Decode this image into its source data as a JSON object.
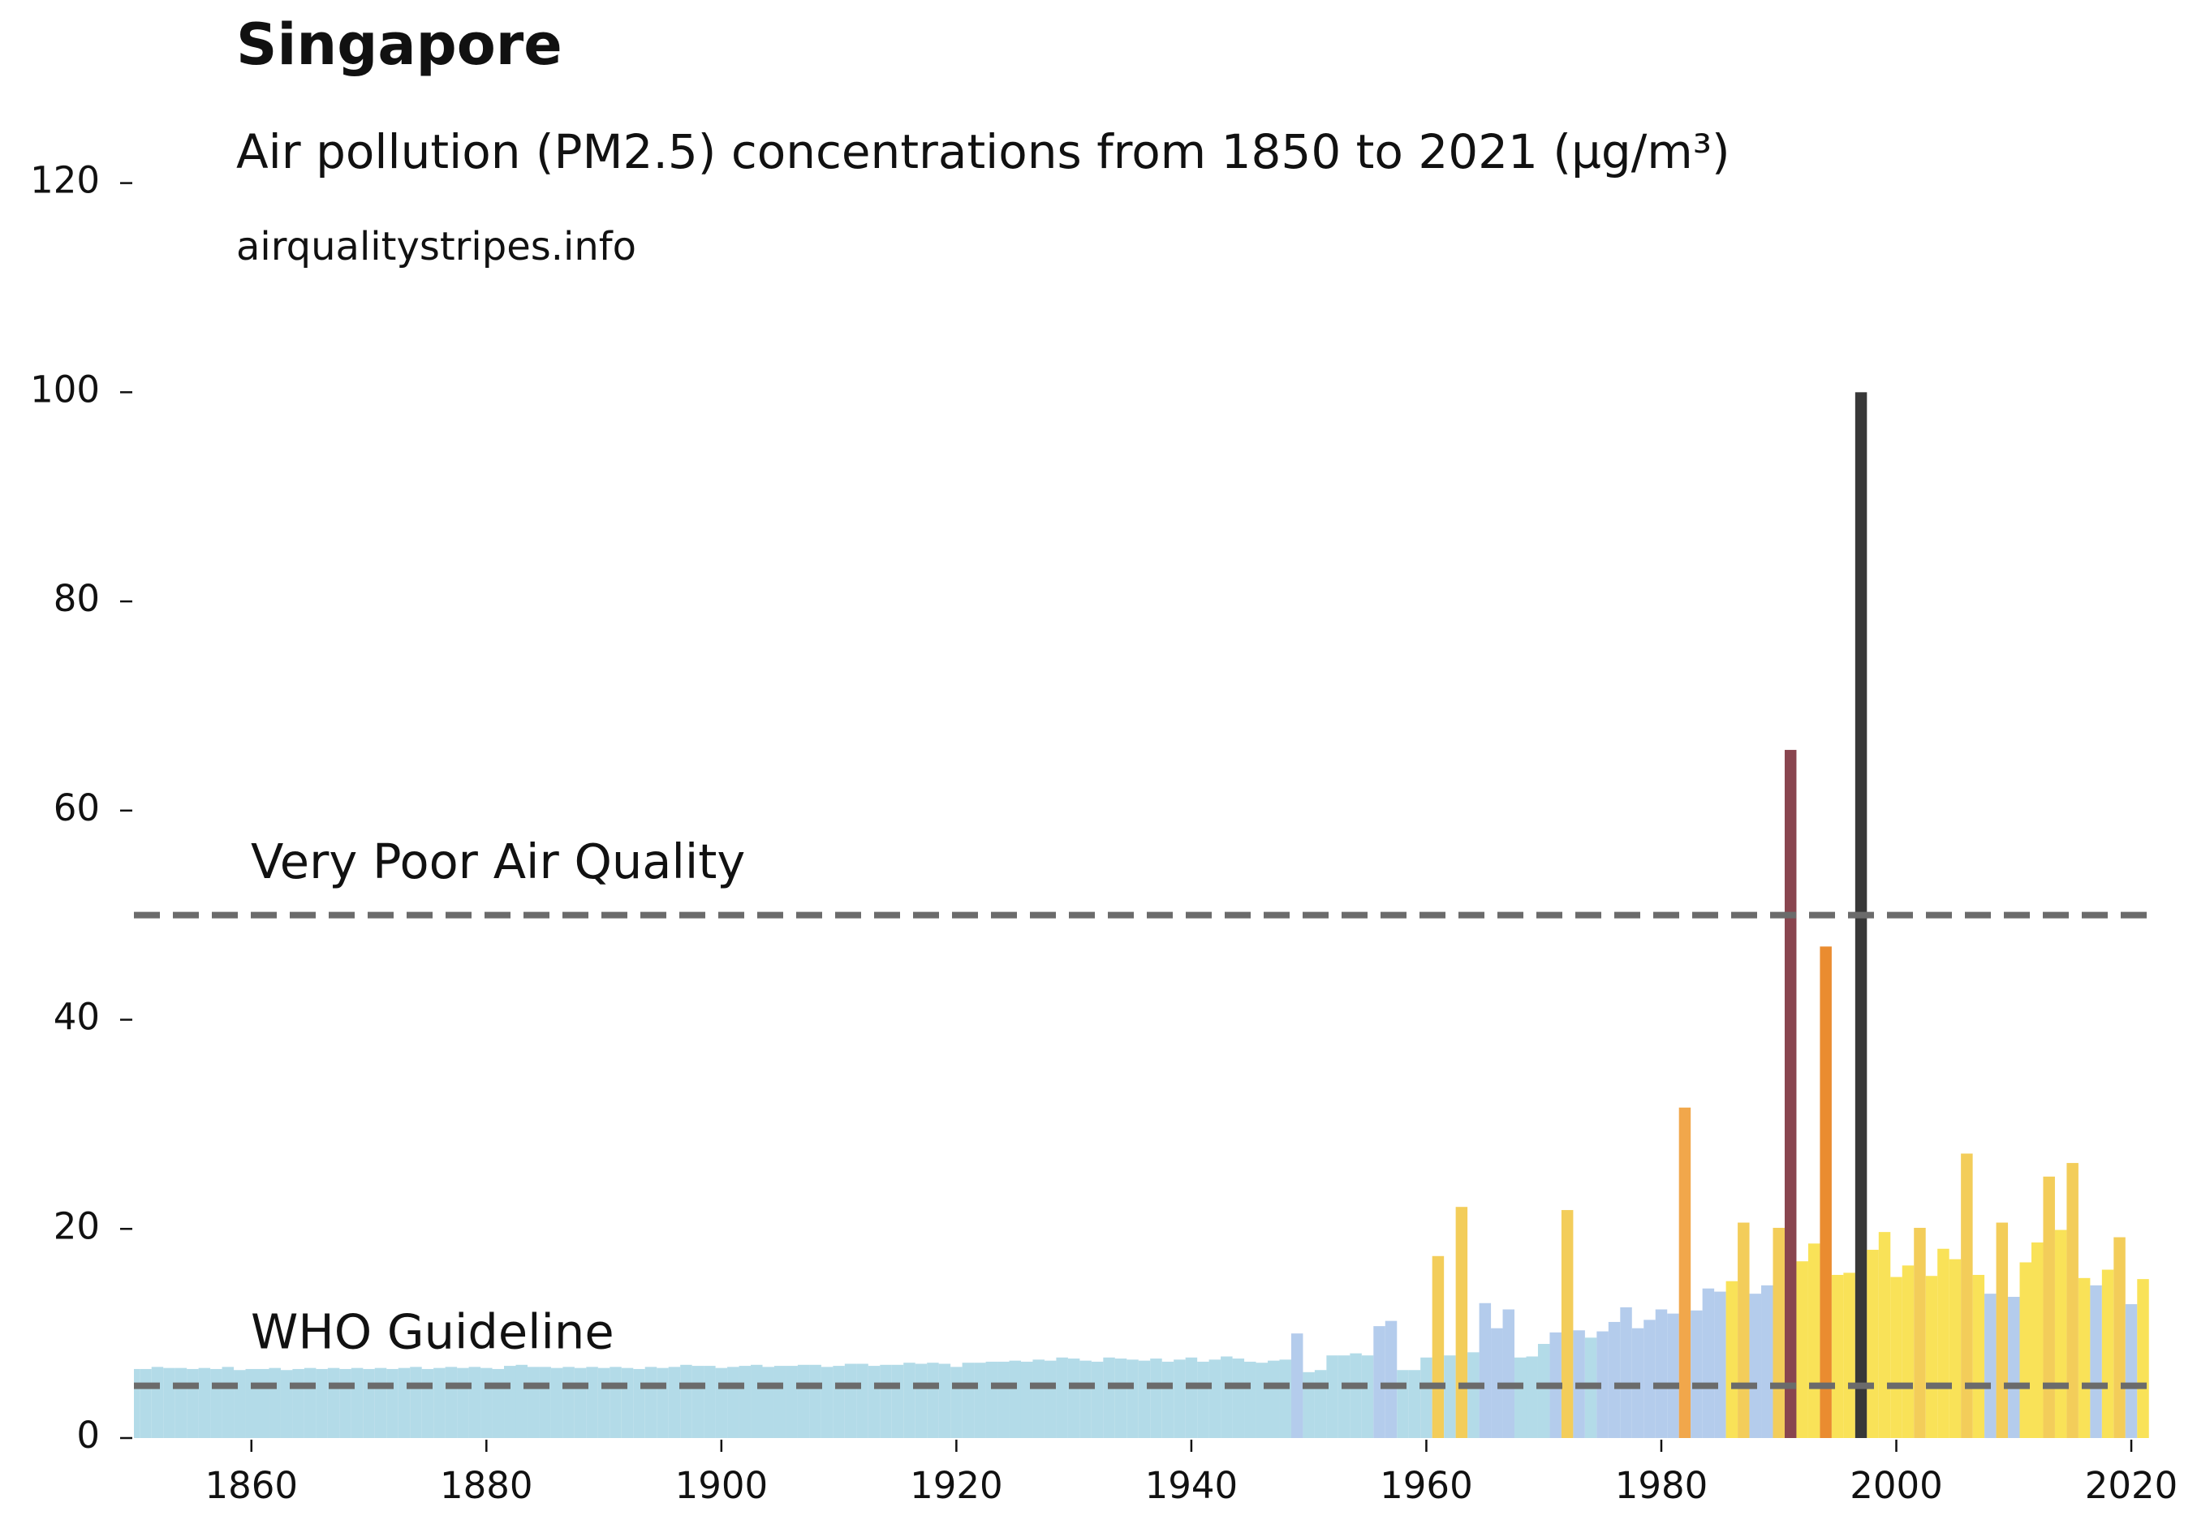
{
  "chart_data": {
    "type": "bar",
    "title": "Singapore",
    "subtitle": "Air pollution (PM2.5) concentrations from 1850 to 2021 (µg/m³)",
    "source": "airqualitystripes.info",
    "x": [
      1850,
      1851,
      1852,
      1853,
      1854,
      1855,
      1856,
      1857,
      1858,
      1859,
      1860,
      1861,
      1862,
      1863,
      1864,
      1865,
      1866,
      1867,
      1868,
      1869,
      1870,
      1871,
      1872,
      1873,
      1874,
      1875,
      1876,
      1877,
      1878,
      1879,
      1880,
      1881,
      1882,
      1883,
      1884,
      1885,
      1886,
      1887,
      1888,
      1889,
      1890,
      1891,
      1892,
      1893,
      1894,
      1895,
      1896,
      1897,
      1898,
      1899,
      1900,
      1901,
      1902,
      1903,
      1904,
      1905,
      1906,
      1907,
      1908,
      1909,
      1910,
      1911,
      1912,
      1913,
      1914,
      1915,
      1916,
      1917,
      1918,
      1919,
      1920,
      1921,
      1922,
      1923,
      1924,
      1925,
      1926,
      1927,
      1928,
      1929,
      1930,
      1931,
      1932,
      1933,
      1934,
      1935,
      1936,
      1937,
      1938,
      1939,
      1940,
      1941,
      1942,
      1943,
      1944,
      1945,
      1946,
      1947,
      1948,
      1949,
      1950,
      1951,
      1952,
      1953,
      1954,
      1955,
      1956,
      1957,
      1958,
      1959,
      1960,
      1961,
      1962,
      1963,
      1964,
      1965,
      1966,
      1967,
      1968,
      1969,
      1970,
      1971,
      1972,
      1973,
      1974,
      1975,
      1976,
      1977,
      1978,
      1979,
      1980,
      1981,
      1982,
      1983,
      1984,
      1985,
      1986,
      1987,
      1988,
      1989,
      1990,
      1991,
      1992,
      1993,
      1994,
      1995,
      1996,
      1997,
      1998,
      1999,
      2000,
      2001,
      2002,
      2003,
      2004,
      2005,
      2006,
      2007,
      2008,
      2009,
      2010,
      2011,
      2012,
      2013,
      2014,
      2015,
      2016,
      2017,
      2018,
      2019,
      2020,
      2021
    ],
    "values": [
      6.6,
      6.6,
      6.8,
      6.7,
      6.7,
      6.6,
      6.7,
      6.6,
      6.8,
      6.5,
      6.6,
      6.6,
      6.7,
      6.5,
      6.6,
      6.7,
      6.6,
      6.7,
      6.6,
      6.7,
      6.6,
      6.7,
      6.6,
      6.7,
      6.8,
      6.6,
      6.7,
      6.8,
      6.7,
      6.8,
      6.7,
      6.6,
      6.9,
      7.0,
      6.8,
      6.8,
      6.7,
      6.8,
      6.7,
      6.8,
      6.7,
      6.8,
      6.7,
      6.6,
      6.8,
      6.7,
      6.8,
      7.0,
      6.9,
      6.9,
      6.7,
      6.8,
      6.9,
      7.0,
      6.8,
      6.9,
      6.9,
      7.0,
      7.0,
      6.8,
      6.9,
      7.1,
      7.1,
      6.9,
      7.0,
      7.0,
      7.2,
      7.1,
      7.2,
      7.1,
      6.8,
      7.2,
      7.2,
      7.3,
      7.3,
      7.4,
      7.3,
      7.5,
      7.4,
      7.7,
      7.6,
      7.4,
      7.3,
      7.7,
      7.6,
      7.5,
      7.4,
      7.6,
      7.3,
      7.5,
      7.7,
      7.3,
      7.5,
      7.8,
      7.6,
      7.3,
      7.2,
      7.4,
      7.5,
      10,
      6.3,
      6.5,
      7.9,
      7.9,
      8.1,
      7.9,
      10.7,
      11.2,
      6.5,
      6.5,
      7.7,
      17.4,
      7.9,
      22.1,
      8.2,
      12.9,
      10.5,
      12.3,
      7.7,
      7.8,
      9,
      10.1,
      21.8,
      10.3,
      9.6,
      10.2,
      11.1,
      12.5,
      10.5,
      11.3,
      12.3,
      11.9,
      31.6,
      12.2,
      14.3,
      14.0,
      15.0,
      20.6,
      13.8,
      14.6,
      20.1,
      65.8,
      16.9,
      18.6,
      47.0,
      15.6,
      15.8,
      100,
      18.0,
      19.7,
      15.4,
      16.5,
      20.1,
      15.5,
      18.1,
      17.1,
      27.2,
      15.6,
      13.8,
      20.6,
      13.5,
      16.8,
      18.7,
      25.0,
      19.9,
      26.3,
      15.3,
      14.6,
      16.1,
      19.2,
      12.8,
      15.2
    ],
    "colors": [
      "#add8e6",
      "#add8e6",
      "#add8e6",
      "#add8e6",
      "#add8e6",
      "#add8e6",
      "#add8e6",
      "#add8e6",
      "#add8e6",
      "#add8e6",
      "#add8e6",
      "#add8e6",
      "#add8e6",
      "#add8e6",
      "#add8e6",
      "#add8e6",
      "#add8e6",
      "#add8e6",
      "#add8e6",
      "#add8e6",
      "#add8e6",
      "#add8e6",
      "#add8e6",
      "#add8e6",
      "#add8e6",
      "#add8e6",
      "#add8e6",
      "#add8e6",
      "#add8e6",
      "#add8e6",
      "#add8e6",
      "#add8e6",
      "#add8e6",
      "#add8e6",
      "#add8e6",
      "#add8e6",
      "#add8e6",
      "#add8e6",
      "#add8e6",
      "#add8e6",
      "#add8e6",
      "#add8e6",
      "#add8e6",
      "#add8e6",
      "#add8e6",
      "#add8e6",
      "#add8e6",
      "#add8e6",
      "#add8e6",
      "#add8e6",
      "#add8e6",
      "#add8e6",
      "#add8e6",
      "#add8e6",
      "#add8e6",
      "#add8e6",
      "#add8e6",
      "#add8e6",
      "#add8e6",
      "#add8e6",
      "#add8e6",
      "#add8e6",
      "#add8e6",
      "#add8e6",
      "#add8e6",
      "#add8e6",
      "#add8e6",
      "#add8e6",
      "#add8e6",
      "#add8e6",
      "#add8e6",
      "#add8e6",
      "#add8e6",
      "#add8e6",
      "#add8e6",
      "#add8e6",
      "#add8e6",
      "#add8e6",
      "#add8e6",
      "#add8e6",
      "#add8e6",
      "#add8e6",
      "#add8e6",
      "#add8e6",
      "#add8e6",
      "#add8e6",
      "#add8e6",
      "#add8e6",
      "#add8e6",
      "#add8e6",
      "#add8e6",
      "#add8e6",
      "#add8e6",
      "#add8e6",
      "#add8e6",
      "#add8e6",
      "#add8e6",
      "#add8e6",
      "#add8e6",
      "#aec8ea",
      "#add8e6",
      "#add8e6",
      "#add8e6",
      "#add8e6",
      "#add8e6",
      "#add8e6",
      "#aec8ea",
      "#aec8ea",
      "#add8e6",
      "#add8e6",
      "#add8e6",
      "#f2c94c",
      "#add8e6",
      "#f2c94c",
      "#add8e6",
      "#aec8ea",
      "#aec8ea",
      "#aec8ea",
      "#add8e6",
      "#add8e6",
      "#add8e6",
      "#aec8ea",
      "#f2c94c",
      "#aec8ea",
      "#add8e6",
      "#aec8ea",
      "#aec8ea",
      "#aec8ea",
      "#aec8ea",
      "#aec8ea",
      "#aec8ea",
      "#aec8ea",
      "#f0a03c",
      "#aec8ea",
      "#aec8ea",
      "#aec8ea",
      "#f9df4a",
      "#f2c94c",
      "#aec8ea",
      "#aec8ea",
      "#f2c94c",
      "#7f3540",
      "#f9df4a",
      "#f9df4a",
      "#e8821e",
      "#f9df4a",
      "#f9df4a",
      "#272727",
      "#f9df4a",
      "#f9df4a",
      "#f9df4a",
      "#f9df4a",
      "#f2c94c",
      "#f9df4a",
      "#f9df4a",
      "#f9df4a",
      "#f2c94c",
      "#f9df4a",
      "#aec8ea",
      "#f2c94c",
      "#aec8ea",
      "#f9df4a",
      "#f9df4a",
      "#f2c94c",
      "#f9df4a",
      "#f2c94c",
      "#f9df4a",
      "#aec8ea",
      "#f9df4a",
      "#f2c94c",
      "#aec8ea",
      "#f9df4a"
    ],
    "xlim": [
      1850,
      2022
    ],
    "xticks": [
      1860,
      1880,
      1900,
      1920,
      1940,
      1960,
      1980,
      2000,
      2020
    ],
    "ylim": [
      0,
      120
    ],
    "yticks": [
      0,
      20,
      40,
      60,
      80,
      100,
      120
    ],
    "reference_lines": [
      {
        "value": 50,
        "label": "Very Poor Air Quality",
        "color": "#6b6b6b"
      },
      {
        "value": 5,
        "label": "WHO Guideline",
        "color": "#6b6b6b"
      }
    ]
  }
}
